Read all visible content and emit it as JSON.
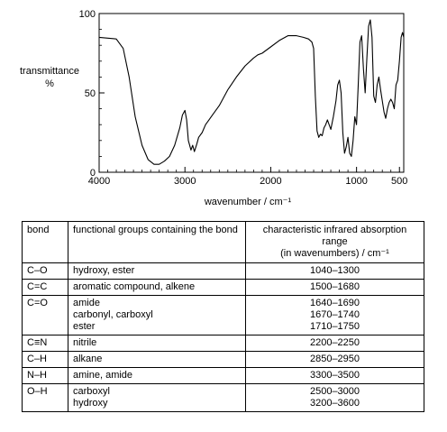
{
  "chart_data": {
    "type": "line",
    "xlabel": "wavenumber / cm⁻¹",
    "ylabel_line1": "transmittance",
    "ylabel_line2": "%",
    "xlim": [
      4000,
      450
    ],
    "ylim": [
      0,
      100
    ],
    "x_ticks": [
      4000,
      3000,
      2000,
      1000,
      500
    ],
    "x_tick_labels": [
      "4000",
      "3000",
      "2000",
      "1000",
      "500"
    ],
    "y_ticks": [
      0,
      50,
      100
    ],
    "y_tick_labels": [
      "0",
      "50",
      "100"
    ],
    "series": [
      {
        "x": [
          4000,
          3800,
          3720,
          3650,
          3580,
          3500,
          3430,
          3360,
          3300,
          3240,
          3180,
          3120,
          3060,
          3030,
          3000,
          2980,
          2960,
          2930,
          2910,
          2890,
          2860,
          2840,
          2800,
          2760,
          2720,
          2680,
          2600,
          2500,
          2400,
          2300,
          2200,
          2150,
          2100,
          2000,
          1900,
          1800,
          1700,
          1620,
          1560,
          1520,
          1500,
          1480,
          1460,
          1440,
          1420,
          1400,
          1380,
          1360,
          1340,
          1300,
          1270,
          1240,
          1220,
          1200,
          1180,
          1160,
          1140,
          1120,
          1100,
          1080,
          1060,
          1040,
          1020,
          1000,
          980,
          960,
          940,
          920,
          900,
          880,
          860,
          840,
          820,
          800,
          780,
          760,
          740,
          720,
          700,
          680,
          660,
          640,
          620,
          600,
          580,
          560,
          540,
          520,
          500,
          480,
          465,
          450
        ],
        "y": [
          85,
          84,
          78,
          60,
          35,
          17,
          8,
          5,
          5,
          7,
          10,
          17,
          28,
          36,
          39,
          33,
          20,
          14,
          17,
          13,
          18,
          22,
          25,
          30,
          33,
          36,
          42,
          52,
          60,
          67,
          72,
          74,
          75,
          79,
          83,
          86,
          86,
          85,
          84,
          82,
          78,
          48,
          26,
          22,
          24,
          23,
          28,
          30,
          33,
          27,
          35,
          45,
          55,
          58,
          50,
          25,
          12,
          16,
          22,
          12,
          10,
          20,
          35,
          30,
          55,
          82,
          86,
          65,
          50,
          72,
          92,
          96,
          85,
          48,
          44,
          55,
          60,
          52,
          45,
          38,
          34,
          40,
          44,
          46,
          44,
          40,
          55,
          58,
          70,
          85,
          88,
          85
        ]
      }
    ]
  },
  "table": {
    "headers": {
      "bond": "bond",
      "groups": "functional groups containing the bond",
      "range_line1": "characteristic infrared absorption range",
      "range_line2": "(in wavenumbers) / cm⁻¹"
    },
    "rows": [
      {
        "bond": "C–O",
        "groups": [
          "hydroxy, ester"
        ],
        "ranges": [
          "1040–1300"
        ]
      },
      {
        "bond": "C=C",
        "groups": [
          "aromatic compound, alkene"
        ],
        "ranges": [
          "1500–1680"
        ]
      },
      {
        "bond": "C=O",
        "groups": [
          "amide",
          "carbonyl, carboxyl",
          "ester"
        ],
        "ranges": [
          "1640–1690",
          "1670–1740",
          "1710–1750"
        ]
      },
      {
        "bond": "C≡N",
        "groups": [
          "nitrile"
        ],
        "ranges": [
          "2200–2250"
        ]
      },
      {
        "bond": "C–H",
        "groups": [
          "alkane"
        ],
        "ranges": [
          "2850–2950"
        ]
      },
      {
        "bond": "N–H",
        "groups": [
          "amine, amide"
        ],
        "ranges": [
          "3300–3500"
        ]
      },
      {
        "bond": "O–H",
        "groups": [
          "carboxyl",
          "hydroxy"
        ],
        "ranges": [
          "2500–3000",
          "3200–3600"
        ]
      }
    ]
  }
}
